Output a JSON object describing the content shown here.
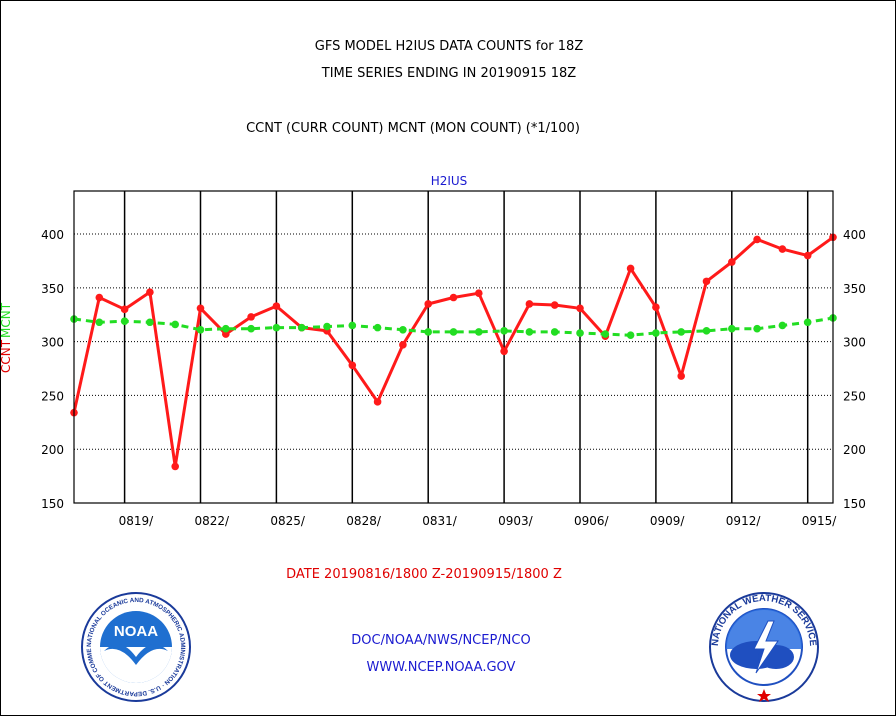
{
  "titles": {
    "line1": "GFS MODEL H2IUS DATA COUNTS for 18Z",
    "line2": "TIME SERIES ENDING IN 20190915 18Z",
    "line3": "CCNT (CURR COUNT) MCNT (MON COUNT) (*1/100)",
    "panel": "H2IUS"
  },
  "date_range": "DATE 20190816/1800 Z-20190915/1800 Z",
  "footer": {
    "org": "DOC/NOAA/NWS/NCEP/NCO",
    "url": "WWW.NCEP.NOAA.GOV"
  },
  "logos": {
    "noaa_center": "NOAA",
    "noaa_ring": "NATIONAL OCEANIC AND ATMOSPHERIC ADMINISTRATION · U.S. DEPARTMENT OF COMMERCE",
    "nws_ring": "NATIONAL WEATHER SERVICE"
  },
  "colors": {
    "ccnt": "#ff1a1a",
    "mcnt": "#22dd22",
    "axis": "#000000",
    "title_blue": "#1a1ad0",
    "date_red": "#e00000"
  },
  "chart_data": {
    "type": "line",
    "title": "H2IUS",
    "ylabel": {
      "ccnt": "CCNT",
      "mcnt": "MCNT"
    },
    "ylim": [
      150,
      440
    ],
    "yticks": [
      150,
      200,
      250,
      300,
      350,
      400
    ],
    "xlim": [
      0,
      30
    ],
    "x_tick_labels": [
      {
        "x": 2,
        "label": "0819/"
      },
      {
        "x": 5,
        "label": "0822/"
      },
      {
        "x": 8,
        "label": "0825/"
      },
      {
        "x": 11,
        "label": "0828/"
      },
      {
        "x": 14,
        "label": "0831/"
      },
      {
        "x": 17,
        "label": "0903/"
      },
      {
        "x": 20,
        "label": "0906/"
      },
      {
        "x": 23,
        "label": "0909/"
      },
      {
        "x": 26,
        "label": "0912/"
      },
      {
        "x": 29,
        "label": "0915/"
      }
    ],
    "grid": true,
    "series": [
      {
        "name": "CCNT",
        "color": "#ff1a1a",
        "style": "solid",
        "values": [
          234,
          341,
          330,
          346,
          184,
          331,
          307,
          323,
          333,
          313,
          310,
          278,
          244,
          297,
          335,
          341,
          345,
          291,
          335,
          334,
          331,
          305,
          368,
          332,
          268,
          356,
          374,
          395,
          386,
          380,
          397
        ]
      },
      {
        "name": "MCNT",
        "color": "#22dd22",
        "style": "dashed",
        "values": [
          321,
          318,
          319,
          318,
          316,
          311,
          312,
          312,
          313,
          313,
          314,
          315,
          313,
          311,
          309,
          309,
          309,
          310,
          309,
          309,
          308,
          307,
          306,
          308,
          309,
          310,
          312,
          312,
          315,
          318,
          322
        ]
      }
    ]
  }
}
